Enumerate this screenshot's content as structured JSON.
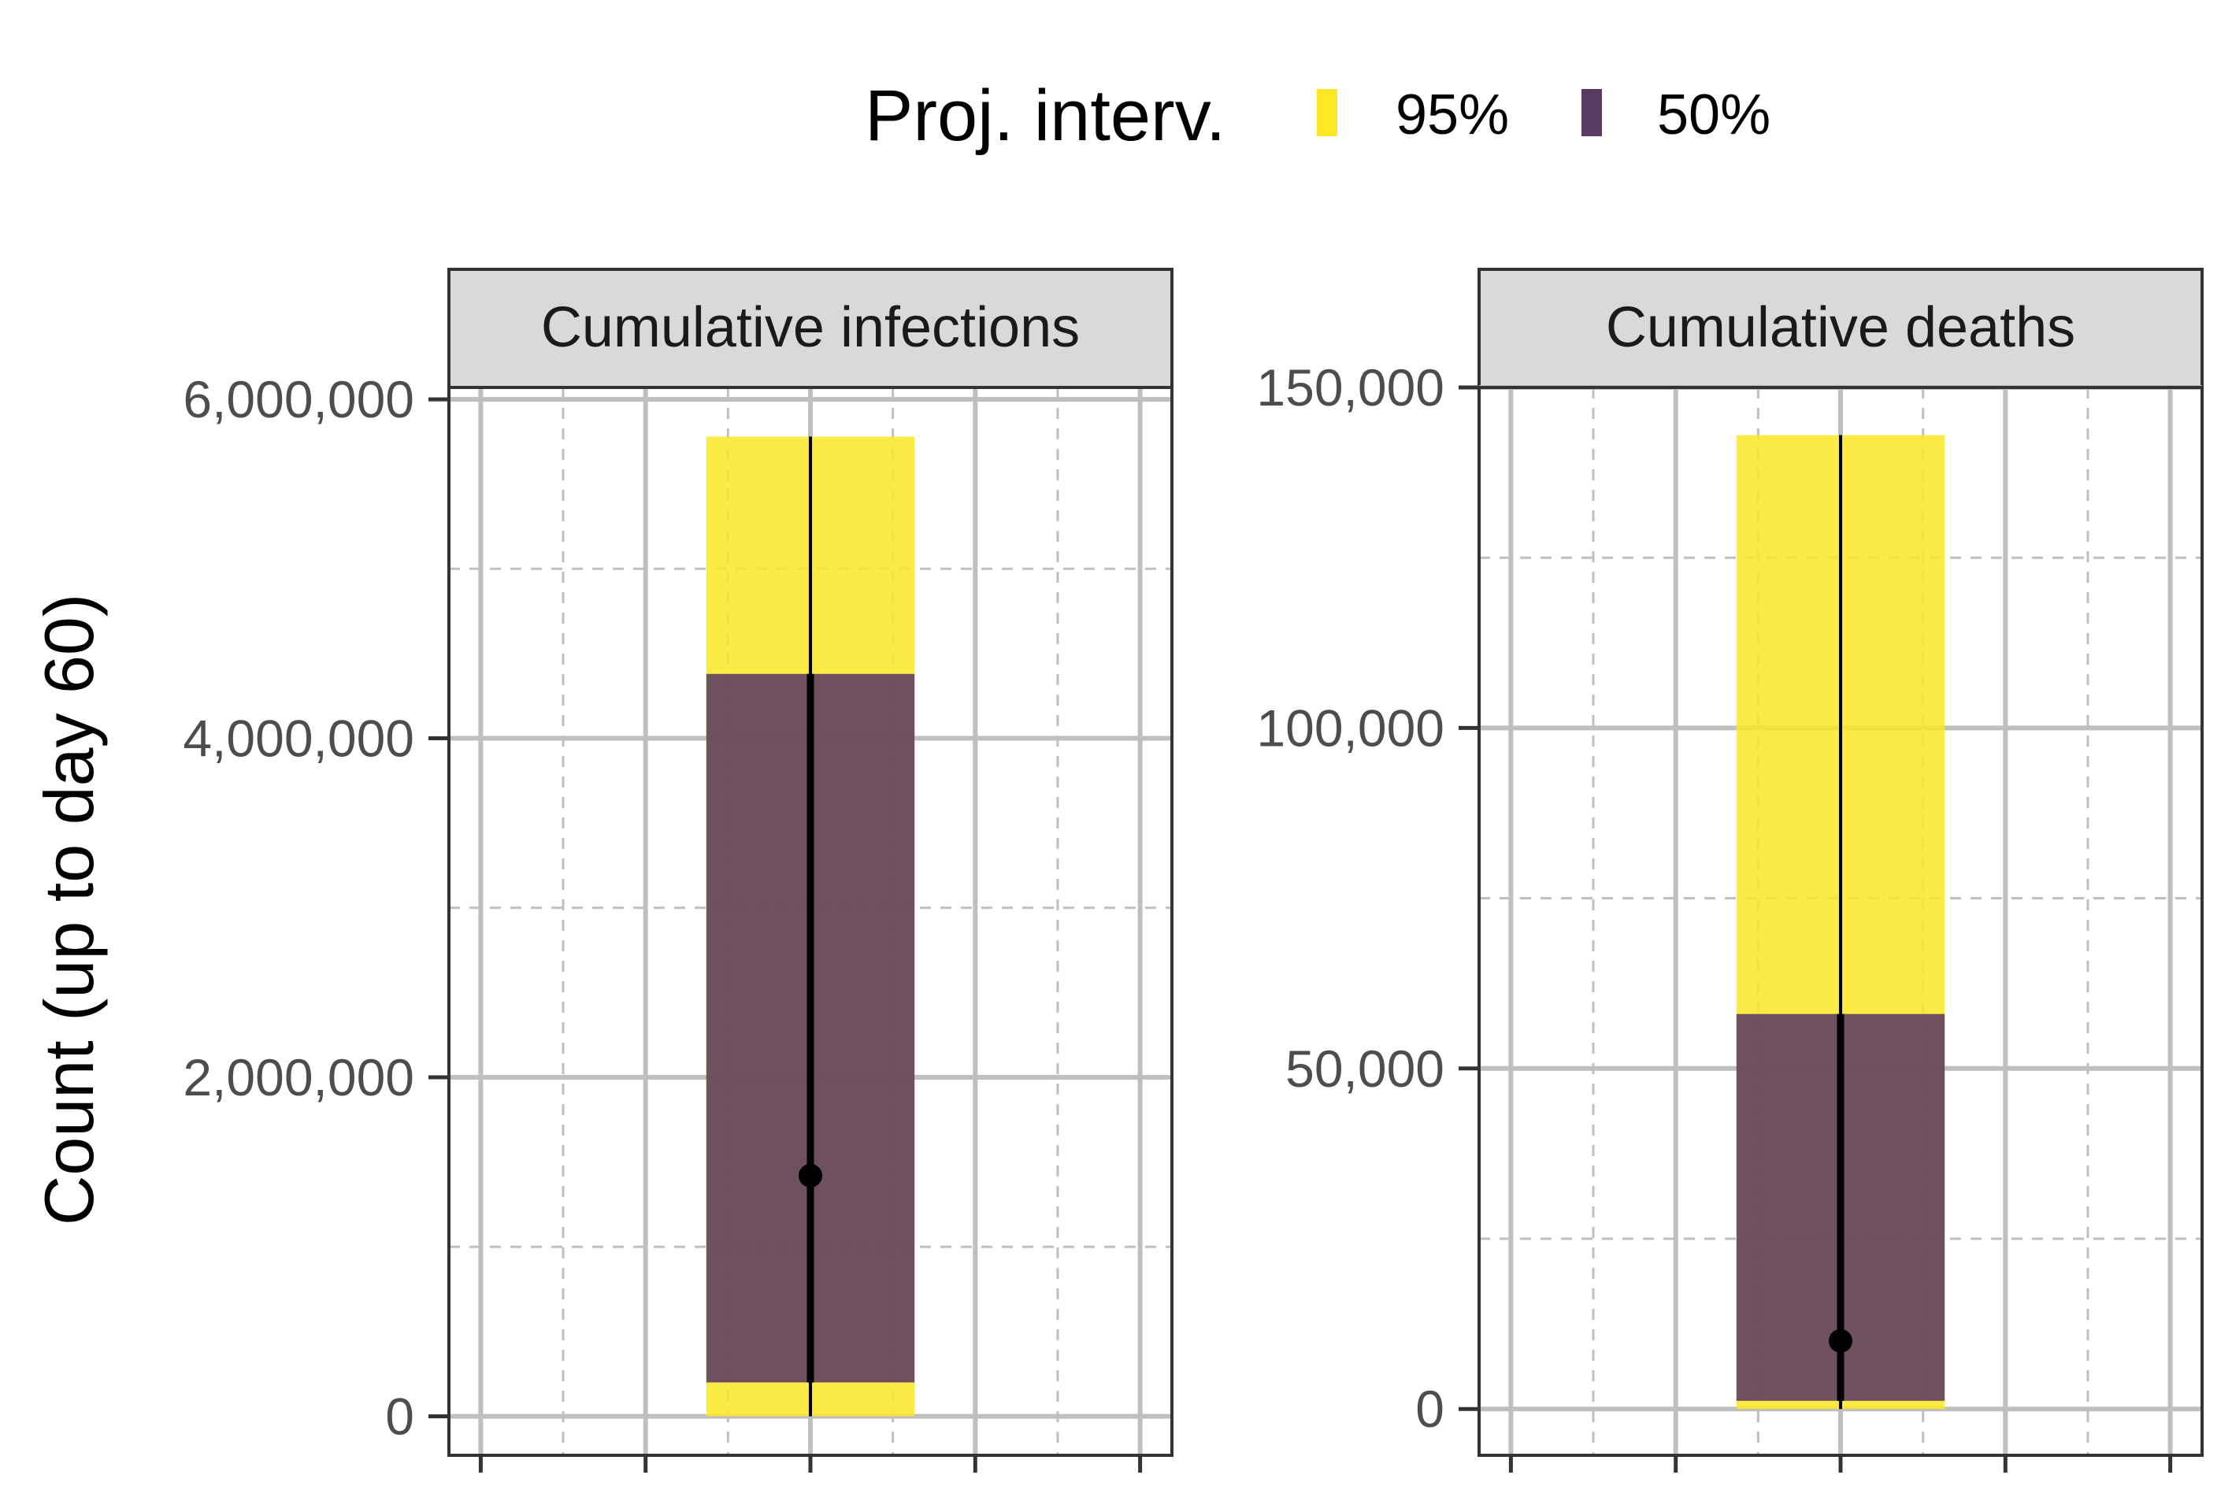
{
  "chart_data": {
    "type": "interval",
    "ylabel": "Count (up to day 60)",
    "legend": {
      "title": "Proj. interv.",
      "position": "top",
      "entries": [
        {
          "label": "95%",
          "color": "#FDE725"
        },
        {
          "label": "50%",
          "color": "#5B3A62"
        }
      ]
    },
    "panels": [
      {
        "title": "Cumulative infections",
        "ylim": [
          -230000,
          6070000
        ],
        "yticks": [
          0,
          2000000,
          4000000,
          6000000
        ],
        "ytick_labels": [
          "0",
          "2,000,000",
          "4,000,000",
          "6,000,000"
        ],
        "ci95": [
          0,
          5780000
        ],
        "ci50": [
          200000,
          4380000
        ],
        "median": 1420000
      },
      {
        "title": "Cumulative deaths",
        "ylim": [
          -6800,
          150000
        ],
        "yticks": [
          0,
          50000,
          100000,
          150000
        ],
        "ytick_labels": [
          "0",
          "50,000",
          "100,000",
          "150,000"
        ],
        "ci95": [
          0,
          143000
        ],
        "ci50": [
          1200,
          58000
        ],
        "median": 10000
      }
    ],
    "colors": {
      "ci95": "#FDE725",
      "ci50": "#5B3A62",
      "line": "#000000",
      "grid": "#bfbfbf",
      "strip_bg": "#d9d9d9",
      "border": "#333333"
    }
  }
}
